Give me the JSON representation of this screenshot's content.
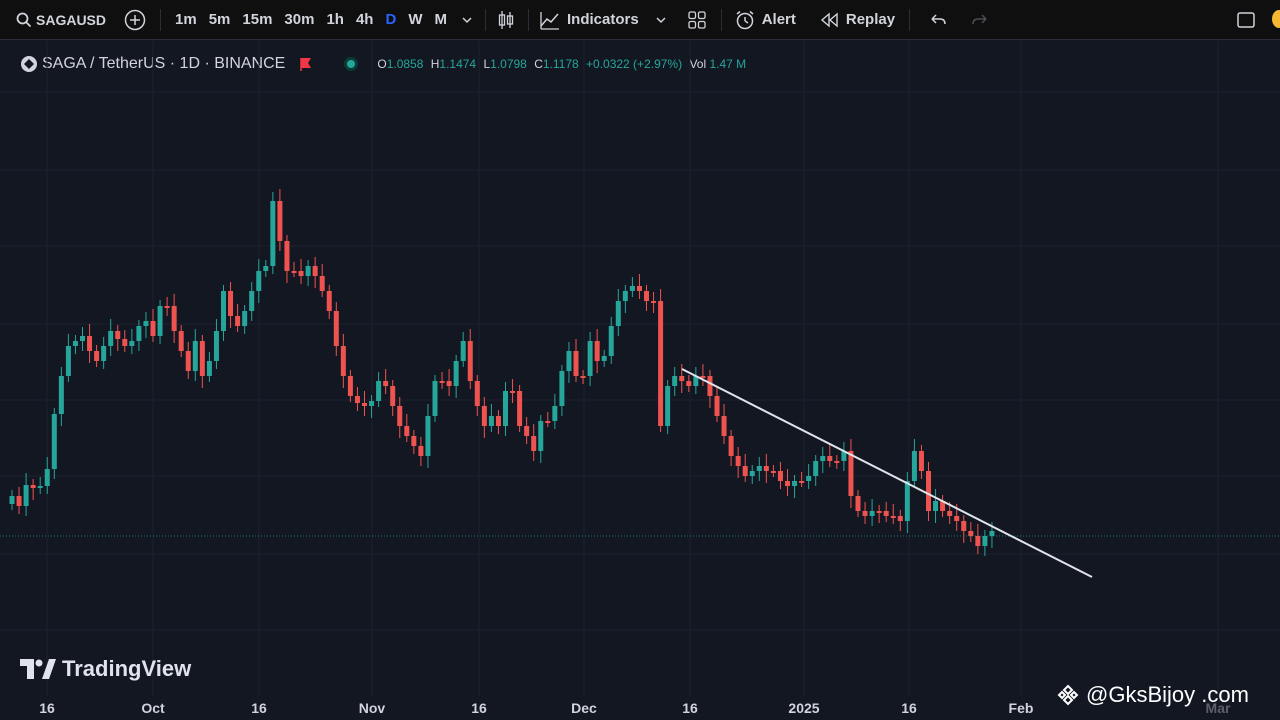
{
  "toolbar": {
    "symbol": "SAGAUSD",
    "timeframes": [
      "1m",
      "5m",
      "15m",
      "30m",
      "1h",
      "4h",
      "D",
      "W",
      "M"
    ],
    "active_timeframe": "D",
    "indicators_label": "Indicators",
    "alert_label": "Alert",
    "replay_label": "Replay"
  },
  "legend": {
    "title": "SAGA / TetherUS · 1D · BINANCE",
    "o_key": "O",
    "o": "1.0858",
    "h_key": "H",
    "h": "1.1474",
    "l_key": "L",
    "l": "1.0798",
    "c_key": "C",
    "c": "1.1178",
    "change": "+0.0322 (+2.97%)",
    "vol_key": "Vol",
    "vol": "1.47 M"
  },
  "chart_data": {
    "type": "candlestick",
    "symbol": "SAGA / TetherUS",
    "interval": "1D",
    "exchange": "BINANCE",
    "x_tick_labels": [
      "16",
      "Oct",
      "16",
      "Nov",
      "16",
      "Dec",
      "16",
      "2025",
      "16",
      "Feb",
      "Mar"
    ],
    "ohlc_last": {
      "open": 1.0858,
      "high": 1.1474,
      "low": 1.0798,
      "close": 1.1178,
      "change": 0.0322,
      "change_pct": 2.97,
      "volume": "1.47 M"
    },
    "colors": {
      "up": "#26a69a",
      "down": "#ef5350",
      "background": "#131722",
      "grid": "#1e222d",
      "trendline": "#e0e3eb"
    },
    "grid": true,
    "trendline": true
  },
  "branding": {
    "logo_text": "TradingView",
    "watermark": "@GksBijoy .com"
  }
}
